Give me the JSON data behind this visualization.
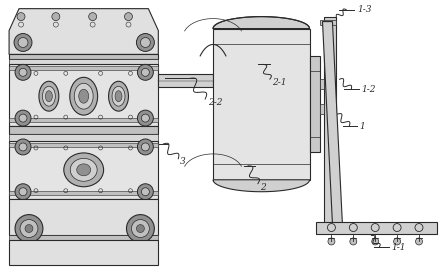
{
  "bg_color": "#ffffff",
  "line_color": "#2a2a2a",
  "fill_light": "#e8e8e8",
  "fill_mid": "#c8c8c8",
  "fill_dark": "#888888",
  "figsize": [
    4.43,
    2.74
  ],
  "dpi": 100
}
